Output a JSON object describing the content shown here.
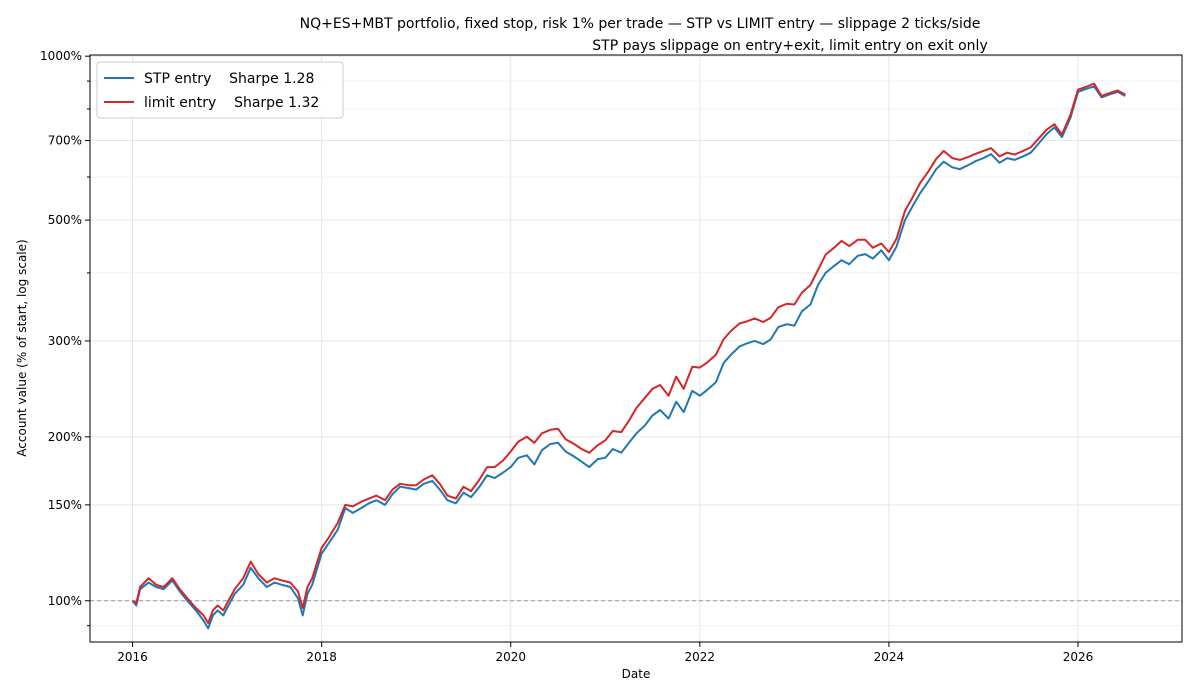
{
  "chart_data": {
    "type": "line",
    "title": "NQ+ES+MBT portfolio, fixed stop, risk 1% per trade — STP vs LIMIT entry — slippage 2 ticks/side",
    "subtitle": "STP pays slippage on entry+exit, limit entry on exit only",
    "xlabel": "Date",
    "ylabel": "Account value (% of start, log scale)",
    "y_scale": "log",
    "xlim": [
      2015.55,
      2027.1
    ],
    "ylim": [
      84,
      1005
    ],
    "x_ticks": [
      {
        "value": 2016,
        "label": "2016"
      },
      {
        "value": 2018,
        "label": "2018"
      },
      {
        "value": 2020,
        "label": "2020"
      },
      {
        "value": 2022,
        "label": "2022"
      },
      {
        "value": 2024,
        "label": "2024"
      },
      {
        "value": 2026,
        "label": "2026"
      }
    ],
    "y_ticks": [
      {
        "value": 100,
        "label": "100%"
      },
      {
        "value": 150,
        "label": "150%"
      },
      {
        "value": 200,
        "label": "200%"
      },
      {
        "value": 300,
        "label": "300%"
      },
      {
        "value": 500,
        "label": "500%"
      },
      {
        "value": 700,
        "label": "700%"
      },
      {
        "value": 1000,
        "label": "1000%"
      }
    ],
    "y_minor_ticks": [
      90,
      400,
      600,
      800,
      900
    ],
    "grid": true,
    "reference_line": {
      "y": 100,
      "style": "dashed",
      "color": "#999999"
    },
    "legend_position": "top-left",
    "series": [
      {
        "name": "STP entry    Sharpe 1.28",
        "color": "#1f77b4",
        "x": [
          2016.0,
          2016.04,
          2016.08,
          2016.17,
          2016.25,
          2016.33,
          2016.42,
          2016.5,
          2016.58,
          2016.67,
          2016.75,
          2016.8,
          2016.85,
          2016.9,
          2016.96,
          2017.0,
          2017.08,
          2017.17,
          2017.25,
          2017.33,
          2017.42,
          2017.5,
          2017.58,
          2017.67,
          2017.75,
          2017.8,
          2017.85,
          2017.9,
          2018.0,
          2018.08,
          2018.17,
          2018.25,
          2018.33,
          2018.42,
          2018.5,
          2018.58,
          2018.67,
          2018.75,
          2018.83,
          2018.92,
          2019.0,
          2019.08,
          2019.17,
          2019.25,
          2019.33,
          2019.42,
          2019.5,
          2019.58,
          2019.67,
          2019.75,
          2019.83,
          2019.92,
          2020.0,
          2020.08,
          2020.17,
          2020.25,
          2020.33,
          2020.42,
          2020.5,
          2020.58,
          2020.67,
          2020.75,
          2020.83,
          2020.92,
          2021.0,
          2021.08,
          2021.17,
          2021.25,
          2021.33,
          2021.42,
          2021.5,
          2021.58,
          2021.67,
          2021.75,
          2021.83,
          2021.92,
          2022.0,
          2022.08,
          2022.17,
          2022.25,
          2022.33,
          2022.42,
          2022.5,
          2022.58,
          2022.67,
          2022.75,
          2022.83,
          2022.92,
          2023.0,
          2023.08,
          2023.17,
          2023.25,
          2023.33,
          2023.42,
          2023.5,
          2023.58,
          2023.67,
          2023.75,
          2023.83,
          2023.92,
          2024.0,
          2024.08,
          2024.17,
          2024.25,
          2024.33,
          2024.42,
          2024.5,
          2024.58,
          2024.67,
          2024.75,
          2024.83,
          2024.92,
          2025.0,
          2025.08,
          2025.17,
          2025.25,
          2025.33,
          2025.42,
          2025.5,
          2025.58,
          2025.67,
          2025.75,
          2025.83,
          2025.92,
          2026.0,
          2026.08,
          2026.17,
          2026.25,
          2026.33,
          2026.42,
          2026.5
        ],
        "values": [
          100,
          98,
          105,
          108,
          106,
          105,
          109,
          104,
          100,
          96,
          92,
          89,
          94,
          96,
          94,
          97,
          103,
          107,
          115,
          110,
          106,
          108,
          107,
          106,
          101,
          94,
          103,
          107,
          122,
          128,
          135,
          148,
          145,
          148,
          151,
          153,
          150,
          157,
          162,
          161,
          160,
          164,
          166,
          160,
          153,
          151,
          158,
          155,
          162,
          170,
          168,
          172,
          176,
          183,
          185,
          178,
          189,
          194,
          195,
          188,
          184,
          180,
          176,
          182,
          183,
          190,
          187,
          195,
          203,
          210,
          219,
          224,
          216,
          232,
          222,
          243,
          238,
          244,
          252,
          273,
          283,
          293,
          297,
          300,
          296,
          302,
          318,
          322,
          320,
          340,
          350,
          380,
          400,
          412,
          422,
          415,
          430,
          433,
          425,
          440,
          422,
          447,
          500,
          530,
          560,
          590,
          620,
          640,
          625,
          620,
          630,
          642,
          650,
          661,
          637,
          650,
          645,
          655,
          665,
          690,
          720,
          740,
          710,
          770,
          860,
          870,
          880,
          840,
          850,
          860,
          845
        ]
      },
      {
        "name": "limit entry    Sharpe 1.32",
        "color": "#d62728",
        "x": [
          2016.0,
          2016.04,
          2016.08,
          2016.17,
          2016.25,
          2016.33,
          2016.42,
          2016.5,
          2016.58,
          2016.67,
          2016.75,
          2016.8,
          2016.85,
          2016.9,
          2016.96,
          2017.0,
          2017.08,
          2017.17,
          2017.25,
          2017.33,
          2017.42,
          2017.5,
          2017.58,
          2017.67,
          2017.75,
          2017.8,
          2017.85,
          2017.9,
          2018.0,
          2018.08,
          2018.17,
          2018.25,
          2018.33,
          2018.42,
          2018.5,
          2018.58,
          2018.67,
          2018.75,
          2018.83,
          2018.92,
          2019.0,
          2019.08,
          2019.17,
          2019.25,
          2019.33,
          2019.42,
          2019.5,
          2019.58,
          2019.67,
          2019.75,
          2019.83,
          2019.92,
          2020.0,
          2020.08,
          2020.17,
          2020.25,
          2020.33,
          2020.42,
          2020.5,
          2020.58,
          2020.67,
          2020.75,
          2020.83,
          2020.92,
          2021.0,
          2021.08,
          2021.17,
          2021.25,
          2021.33,
          2021.42,
          2021.5,
          2021.58,
          2021.67,
          2021.75,
          2021.83,
          2021.92,
          2022.0,
          2022.08,
          2022.17,
          2022.25,
          2022.33,
          2022.42,
          2022.5,
          2022.58,
          2022.67,
          2022.75,
          2022.83,
          2022.92,
          2023.0,
          2023.08,
          2023.17,
          2023.25,
          2023.33,
          2023.42,
          2023.5,
          2023.58,
          2023.67,
          2023.75,
          2023.83,
          2023.92,
          2024.0,
          2024.08,
          2024.17,
          2024.25,
          2024.33,
          2024.42,
          2024.5,
          2024.58,
          2024.67,
          2024.75,
          2024.83,
          2024.92,
          2025.0,
          2025.08,
          2025.17,
          2025.25,
          2025.33,
          2025.42,
          2025.5,
          2025.58,
          2025.67,
          2025.75,
          2025.83,
          2025.92,
          2026.0,
          2026.08,
          2026.17,
          2026.25,
          2026.33,
          2026.42,
          2026.5
        ],
        "values": [
          100,
          99,
          106,
          110,
          107,
          106,
          110,
          105,
          101,
          97,
          94,
          91,
          96,
          98,
          96,
          99,
          105,
          110,
          118,
          112,
          108,
          110,
          109,
          108,
          104,
          97,
          106,
          110,
          125,
          131,
          139,
          150,
          149,
          152,
          154,
          156,
          153,
          160,
          164,
          163,
          163,
          167,
          170,
          164,
          156,
          154,
          162,
          159,
          167,
          176,
          176,
          181,
          188,
          196,
          200,
          195,
          203,
          206,
          207,
          198,
          194,
          190,
          187,
          193,
          197,
          205,
          204,
          214,
          226,
          236,
          245,
          249,
          238,
          258,
          245,
          269,
          268,
          274,
          283,
          302,
          313,
          323,
          326,
          330,
          325,
          331,
          346,
          351,
          350,
          368,
          380,
          405,
          432,
          445,
          458,
          448,
          460,
          460,
          445,
          453,
          437,
          462,
          520,
          550,
          585,
          615,
          648,
          670,
          650,
          645,
          652,
          662,
          670,
          678,
          655,
          665,
          660,
          670,
          680,
          705,
          733,
          750,
          718,
          780,
          868,
          878,
          890,
          845,
          855,
          865,
          850
        ]
      }
    ]
  }
}
